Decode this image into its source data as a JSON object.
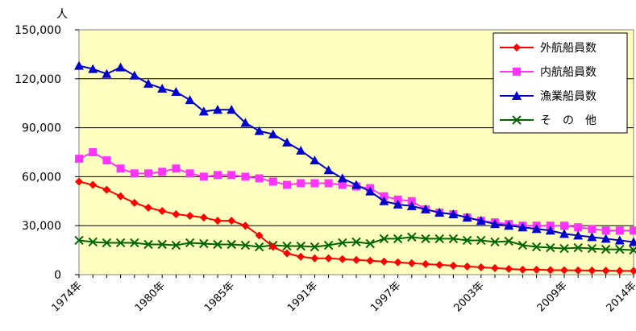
{
  "chart_data": {
    "type": "line",
    "y_unit_label": "人",
    "ylim": [
      0,
      150000
    ],
    "y_ticks": [
      0,
      30000,
      60000,
      90000,
      120000,
      150000
    ],
    "y_tick_labels": [
      "0",
      "30,000",
      "60,000",
      "90,000",
      "120,000",
      "150,000"
    ],
    "x": [
      1974,
      1975,
      1976,
      1977,
      1978,
      1979,
      1980,
      1981,
      1982,
      1983,
      1984,
      1985,
      1986,
      1987,
      1988,
      1989,
      1990,
      1991,
      1992,
      1993,
      1994,
      1995,
      1996,
      1997,
      1998,
      1999,
      2000,
      2001,
      2002,
      2003,
      2004,
      2005,
      2006,
      2007,
      2008,
      2009,
      2010,
      2011,
      2012,
      2013,
      2014
    ],
    "x_tick_labels": [
      "1974年",
      "1980年",
      "1985年",
      "1991年",
      "1997年",
      "2003年",
      "2009年",
      "2014年"
    ],
    "x_tick_years": [
      1974,
      1980,
      1985,
      1991,
      1997,
      2003,
      2009,
      2014
    ],
    "grid": true,
    "plot_background": "#ffffc0",
    "legend_position": "top-right",
    "series": [
      {
        "name": "外航船員数",
        "color": "#ff0000",
        "marker": "diamond",
        "values": [
          57000,
          55000,
          52000,
          48000,
          44000,
          41000,
          39000,
          37000,
          36000,
          35000,
          33000,
          33000,
          30000,
          24000,
          17000,
          13000,
          11000,
          10000,
          10000,
          9500,
          9000,
          8500,
          8000,
          7500,
          7000,
          6500,
          6000,
          5500,
          5000,
          4500,
          4000,
          3500,
          3000,
          3000,
          2800,
          2700,
          2600,
          2500,
          2400,
          2300,
          2300
        ]
      },
      {
        "name": "内航船員数",
        "color": "#ff33ff",
        "marker": "square",
        "values": [
          71000,
          75000,
          70000,
          65000,
          62000,
          62000,
          63000,
          65000,
          62000,
          60000,
          61000,
          61000,
          60000,
          59000,
          57000,
          55000,
          56000,
          56000,
          56000,
          55000,
          54000,
          53000,
          48000,
          46000,
          45000,
          40000,
          38000,
          37000,
          35000,
          33000,
          32000,
          31000,
          30000,
          30000,
          30000,
          30000,
          29000,
          28000,
          27000,
          27000,
          27000
        ]
      },
      {
        "name": "漁業船員数",
        "color": "#0000cc",
        "marker": "triangle",
        "values": [
          128000,
          126000,
          123000,
          127000,
          122000,
          117000,
          114000,
          112000,
          107000,
          100000,
          101000,
          101000,
          93000,
          88000,
          86000,
          81000,
          76000,
          70000,
          64000,
          59000,
          55000,
          51000,
          45000,
          43000,
          42000,
          40000,
          38000,
          37000,
          35000,
          33000,
          31000,
          30000,
          29000,
          28000,
          27000,
          25000,
          24000,
          23000,
          22000,
          21000,
          20000
        ]
      },
      {
        "name": "そ　の　他",
        "color": "#006600",
        "marker": "x",
        "values": [
          21000,
          20000,
          19500,
          19500,
          19500,
          18500,
          18500,
          18000,
          19500,
          19000,
          18500,
          18500,
          18000,
          17000,
          18000,
          17500,
          17500,
          17000,
          18000,
          19500,
          20000,
          19000,
          22000,
          22000,
          23000,
          22000,
          22000,
          22000,
          21000,
          21000,
          20000,
          20500,
          18000,
          17000,
          16500,
          16000,
          16500,
          16000,
          15500,
          15500,
          15000
        ]
      }
    ]
  }
}
